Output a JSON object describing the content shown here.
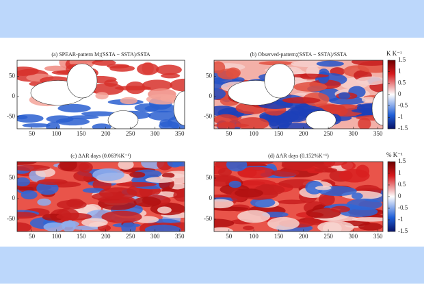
{
  "chart_data": [
    {
      "type": "map",
      "title": "(a) SPEAR-pattern M;(SSTA − SSTA)/SSTA",
      "xlim": [
        20,
        360
      ],
      "ylim": [
        -80,
        90
      ],
      "xticks": [
        50,
        100,
        150,
        200,
        250,
        300,
        350
      ],
      "yticks": [
        50,
        0,
        -50
      ]
    },
    {
      "type": "map",
      "title": "(b) Observed-pattern;(SSTA − SSTA)/SSTA",
      "xlim": [
        20,
        360
      ],
      "ylim": [
        -80,
        90
      ],
      "xticks": [
        50,
        100,
        150,
        200,
        250,
        300,
        350
      ],
      "yticks": [
        50,
        0,
        -50
      ]
    },
    {
      "type": "map",
      "title": "(c) ΔAR days (0.063%K⁻¹)",
      "xlim": [
        20,
        360
      ],
      "ylim": [
        -80,
        90
      ],
      "xticks": [
        50,
        100,
        150,
        200,
        250,
        300,
        350
      ],
      "yticks": [
        50,
        0,
        -50
      ]
    },
    {
      "type": "map",
      "title": "(d) ΔAR days (0.152%K⁻¹)",
      "xlim": [
        20,
        360
      ],
      "ylim": [
        -80,
        90
      ],
      "xticks": [
        50,
        100,
        150,
        200,
        250,
        300,
        350
      ],
      "yticks": [
        50,
        0,
        -50
      ]
    }
  ],
  "colorbars": [
    {
      "label": "K K⁻¹",
      "clim": [
        -1.5,
        1.5
      ],
      "ticks": [
        1.5,
        1,
        0.5,
        0,
        -0.5,
        -1,
        -1.5
      ]
    },
    {
      "label": "% K⁻¹",
      "clim": [
        -1.5,
        1.5
      ],
      "ticks": [
        1.5,
        1,
        0.5,
        0,
        -0.5,
        -1,
        -1.5
      ]
    }
  ]
}
